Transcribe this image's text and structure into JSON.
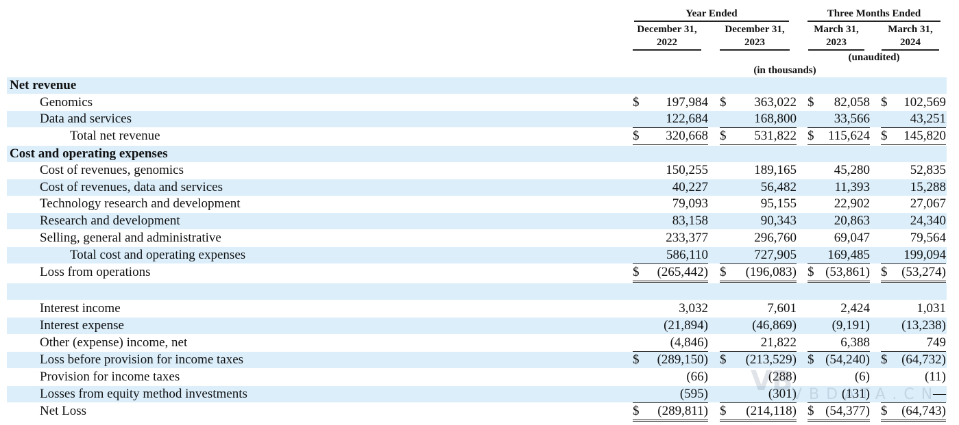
{
  "header": {
    "group1_title": "Year Ended",
    "group2_title": "Three Months Ended",
    "columns": [
      {
        "line1": "December 31,",
        "line2": "2022"
      },
      {
        "line1": "December 31,",
        "line2": "2023"
      },
      {
        "line1": "March 31,",
        "line2": "2023"
      },
      {
        "line1": "March 31,",
        "line2": "2024"
      }
    ],
    "unaudited": "(unaudited)",
    "units": "(in thousands)"
  },
  "watermark": {
    "logo": "VB",
    "text": "VBDATA.CN"
  },
  "rows": [
    {
      "label": "Net revenue",
      "values": [
        "",
        "",
        "",
        ""
      ],
      "currency": [
        false,
        false,
        false,
        false
      ]
    },
    {
      "label": "Genomics",
      "values": [
        "197,984",
        "363,022",
        "82,058",
        "102,569"
      ],
      "currency": [
        true,
        true,
        true,
        true
      ]
    },
    {
      "label": "Data and services",
      "values": [
        "122,684",
        "168,800",
        "33,566",
        "43,251"
      ],
      "currency": [
        false,
        false,
        false,
        false
      ]
    },
    {
      "label": "Total net revenue",
      "values": [
        "320,668",
        "531,822",
        "115,624",
        "145,820"
      ],
      "currency": [
        true,
        true,
        true,
        true
      ]
    },
    {
      "label": "Cost and operating expenses",
      "values": [
        "",
        "",
        "",
        ""
      ],
      "currency": [
        false,
        false,
        false,
        false
      ]
    },
    {
      "label": "Cost of revenues, genomics",
      "values": [
        "150,255",
        "189,165",
        "45,280",
        "52,835"
      ],
      "currency": [
        false,
        false,
        false,
        false
      ]
    },
    {
      "label": "Cost of revenues, data and services",
      "values": [
        "40,227",
        "56,482",
        "11,393",
        "15,288"
      ],
      "currency": [
        false,
        false,
        false,
        false
      ]
    },
    {
      "label": "Technology research and development",
      "values": [
        "79,093",
        "95,155",
        "22,902",
        "27,067"
      ],
      "currency": [
        false,
        false,
        false,
        false
      ]
    },
    {
      "label": "Research and development",
      "values": [
        "83,158",
        "90,343",
        "20,863",
        "24,340"
      ],
      "currency": [
        false,
        false,
        false,
        false
      ]
    },
    {
      "label": "Selling, general and administrative",
      "values": [
        "233,377",
        "296,760",
        "69,047",
        "79,564"
      ],
      "currency": [
        false,
        false,
        false,
        false
      ]
    },
    {
      "label": "Total cost and operating expenses",
      "values": [
        "586,110",
        "727,905",
        "169,485",
        "199,094"
      ],
      "currency": [
        false,
        false,
        false,
        false
      ]
    },
    {
      "label": "Loss from operations",
      "values": [
        "(265,442)",
        "(196,083)",
        "(53,861)",
        "(53,274)"
      ],
      "currency": [
        true,
        true,
        true,
        true
      ]
    },
    {
      "label": "",
      "values": [
        "",
        "",
        "",
        ""
      ],
      "currency": [
        false,
        false,
        false,
        false
      ]
    },
    {
      "label": "Interest income",
      "values": [
        "3,032",
        "7,601",
        "2,424",
        "1,031"
      ],
      "currency": [
        false,
        false,
        false,
        false
      ]
    },
    {
      "label": "Interest expense",
      "values": [
        "(21,894)",
        "(46,869)",
        "(9,191)",
        "(13,238)"
      ],
      "currency": [
        false,
        false,
        false,
        false
      ]
    },
    {
      "label": "Other (expense) income, net",
      "values": [
        "(4,846)",
        "21,822",
        "6,388",
        "749"
      ],
      "currency": [
        false,
        false,
        false,
        false
      ]
    },
    {
      "label": "Loss before provision for income taxes",
      "values": [
        "(289,150)",
        "(213,529)",
        "(54,240)",
        "(64,732)"
      ],
      "currency": [
        true,
        true,
        true,
        true
      ]
    },
    {
      "label": "Provision for income taxes",
      "values": [
        "(66)",
        "(288)",
        "(6)",
        "(11)"
      ],
      "currency": [
        false,
        false,
        false,
        false
      ]
    },
    {
      "label": "Losses from equity method investments",
      "values": [
        "(595)",
        "(301)",
        "(131)",
        "—"
      ],
      "currency": [
        false,
        false,
        false,
        false
      ]
    },
    {
      "label": "Net Loss",
      "values": [
        "(289,811)",
        "(214,118)",
        "(54,377)",
        "(64,743)"
      ],
      "currency": [
        true,
        true,
        true,
        true
      ]
    }
  ],
  "currency_symbol": "$"
}
